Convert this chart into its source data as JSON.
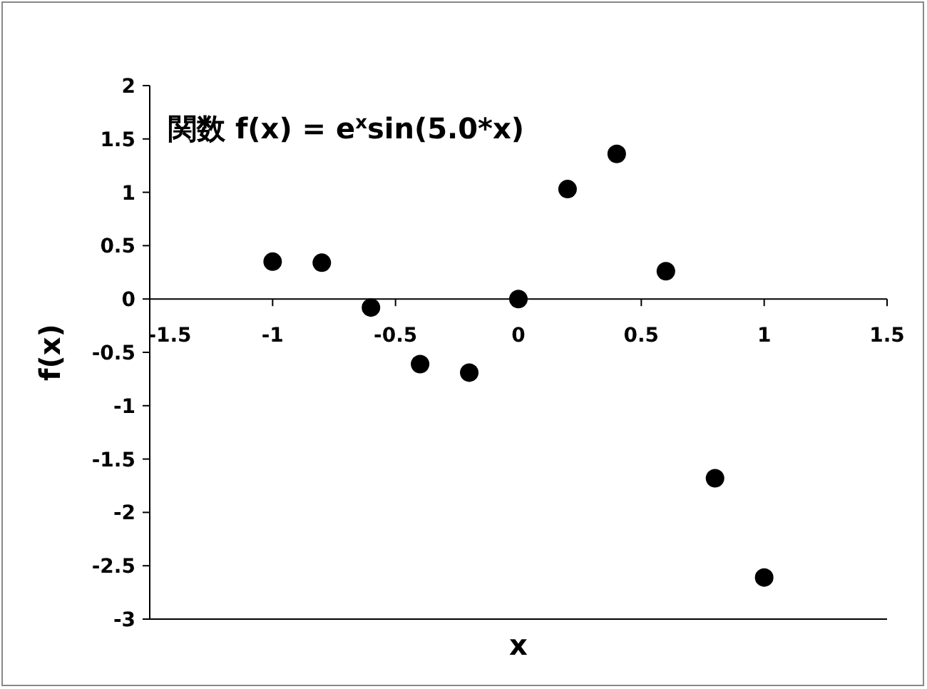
{
  "chart_data": {
    "type": "scatter",
    "title": "関数 f(x) = e$^{x}$sin(5.0*x)",
    "xlabel": "x",
    "ylabel": "f(x)",
    "x": [
      -1,
      -0.8,
      -0.6,
      -0.4,
      -0.2,
      0,
      0.2,
      0.4,
      0.6,
      0.8,
      1
    ],
    "series": [
      {
        "color": "#000000",
        "values": [
          0.35,
          0.34,
          -0.08,
          -0.61,
          -0.69,
          0,
          1.03,
          1.36,
          0.26,
          -1.68,
          -2.61
        ]
      }
    ],
    "marker": "circle",
    "grid": false,
    "xlim": [
      -1.5,
      1.5
    ],
    "xticks": [
      -1.5,
      -1,
      -0.5,
      0,
      0.5,
      1,
      1.5
    ],
    "ylim": [
      -3,
      2
    ],
    "yticks": [
      -3,
      -2.5,
      -2,
      -1.5,
      -1,
      -0.5,
      0,
      0.5,
      1,
      1.5,
      2
    ]
  }
}
